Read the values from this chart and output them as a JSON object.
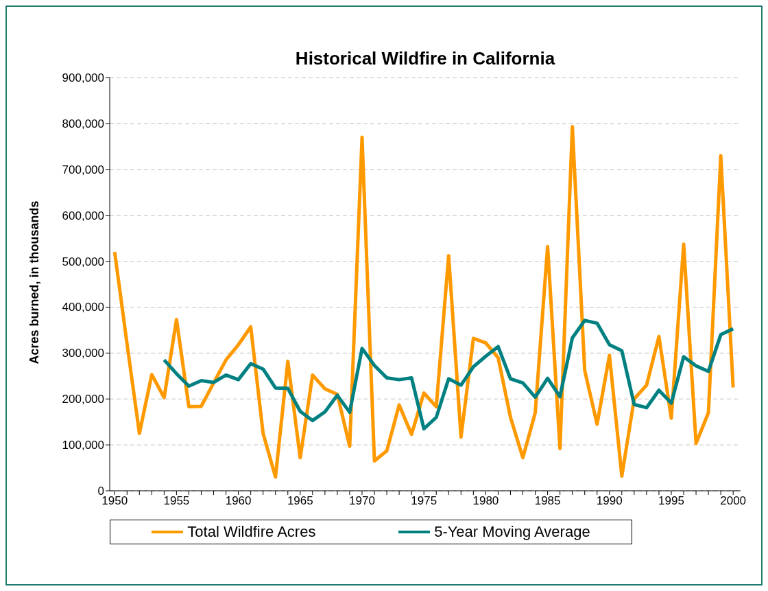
{
  "chart_data": {
    "type": "line",
    "title": "Historical Wildfire in California",
    "ylabel": "Acres burned, in thousands",
    "x": [
      1950,
      1951,
      1952,
      1953,
      1954,
      1955,
      1956,
      1957,
      1958,
      1959,
      1960,
      1961,
      1962,
      1963,
      1964,
      1965,
      1966,
      1967,
      1968,
      1969,
      1970,
      1971,
      1972,
      1973,
      1974,
      1975,
      1976,
      1977,
      1978,
      1979,
      1980,
      1981,
      1982,
      1983,
      1984,
      1985,
      1986,
      1987,
      1988,
      1989,
      1990,
      1991,
      1992,
      1993,
      1994,
      1995,
      1996,
      1997,
      1998,
      1999,
      2000
    ],
    "series": [
      {
        "name": "Total Wildfire Acres",
        "color": "#ff9900",
        "values": [
          520000,
          320000,
          125000,
          253000,
          203000,
          373000,
          183000,
          184000,
          235000,
          285000,
          318000,
          357000,
          125000,
          30000,
          282000,
          72000,
          252000,
          222000,
          210000,
          97000,
          770000,
          65000,
          87000,
          187000,
          123000,
          213000,
          183000,
          512000,
          117000,
          332000,
          322000,
          290000,
          160000,
          72000,
          170000,
          532000,
          92000,
          793000,
          262000,
          145000,
          295000,
          32000,
          200000,
          230000,
          336000,
          158000,
          537000,
          103000,
          170000,
          730000,
          225000
        ]
      },
      {
        "name": "5-Year Moving Average",
        "color": "#008080",
        "values": [
          null,
          null,
          null,
          null,
          285000,
          255000,
          228000,
          240000,
          236000,
          252000,
          242000,
          277000,
          265000,
          224000,
          223000,
          173000,
          153000,
          172000,
          208000,
          171000,
          310000,
          273000,
          246000,
          242000,
          246000,
          135000,
          160000,
          244000,
          230000,
          270000,
          293000,
          314000,
          244000,
          235000,
          204000,
          245000,
          205000,
          333000,
          371000,
          365000,
          318000,
          305000,
          188000,
          181000,
          219000,
          191000,
          292000,
          272000,
          260000,
          340000,
          353000
        ]
      }
    ],
    "xlim": [
      1949.6,
      2000.6
    ],
    "xticks": [
      1950,
      {
        "value": 1951,
        "label": null
      },
      {
        "value": 1952,
        "label": null
      },
      {
        "value": 1953,
        "label": null
      },
      {
        "value": 1954,
        "label": null
      },
      1955,
      {
        "value": 1956,
        "label": null
      },
      {
        "value": 1957,
        "label": null
      },
      {
        "value": 1958,
        "label": null
      },
      {
        "value": 1959,
        "label": null
      },
      1960,
      {
        "value": 1961,
        "label": null
      },
      {
        "value": 1962,
        "label": null
      },
      {
        "value": 1963,
        "label": null
      },
      {
        "value": 1964,
        "label": null
      },
      1965,
      {
        "value": 1966,
        "label": null
      },
      {
        "value": 1967,
        "label": null
      },
      {
        "value": 1968,
        "label": null
      },
      {
        "value": 1969,
        "label": null
      },
      1970,
      {
        "value": 1971,
        "label": null
      },
      {
        "value": 1972,
        "label": null
      },
      {
        "value": 1973,
        "label": null
      },
      {
        "value": 1974,
        "label": null
      },
      1975,
      {
        "value": 1976,
        "label": null
      },
      {
        "value": 1977,
        "label": null
      },
      {
        "value": 1978,
        "label": null
      },
      {
        "value": 1979,
        "label": null
      },
      1980,
      {
        "value": 1981,
        "label": null
      },
      {
        "value": 1982,
        "label": null
      },
      {
        "value": 1983,
        "label": null
      },
      {
        "value": 1984,
        "label": null
      },
      1985,
      {
        "value": 1986,
        "label": null
      },
      {
        "value": 1987,
        "label": null
      },
      {
        "value": 1988,
        "label": null
      },
      {
        "value": 1989,
        "label": null
      },
      1990,
      {
        "value": 1991,
        "label": null
      },
      {
        "value": 1992,
        "label": null
      },
      {
        "value": 1993,
        "label": null
      },
      {
        "value": 1994,
        "label": null
      },
      1995,
      {
        "value": 1996,
        "label": null
      },
      {
        "value": 1997,
        "label": null
      },
      {
        "value": 1998,
        "label": null
      },
      {
        "value": 1999,
        "label": null
      },
      2000
    ],
    "ylim": [
      0,
      900000
    ],
    "yticks": [
      {
        "value": 0,
        "label": "0"
      },
      {
        "value": 100000,
        "label": "100,000"
      },
      {
        "value": 200000,
        "label": "200,000"
      },
      {
        "value": 300000,
        "label": "300,000"
      },
      {
        "value": 400000,
        "label": "400,000"
      },
      {
        "value": 500000,
        "label": "500,000"
      },
      {
        "value": 600000,
        "label": "600,000"
      },
      {
        "value": 700000,
        "label": "700,000"
      },
      {
        "value": 800000,
        "label": "800,000"
      },
      {
        "value": 900000,
        "label": "900,000"
      }
    ],
    "grid": "y",
    "legend": "bottom",
    "marker": "none",
    "line_style": "solid"
  }
}
